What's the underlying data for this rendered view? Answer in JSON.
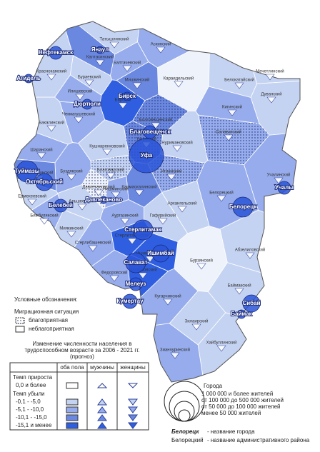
{
  "map": {
    "districts": [
      "Аскинский",
      "Татышлинский",
      "Балтачевский",
      "Караидельский",
      "Мечетлинский",
      "Дуванский",
      "Белокатайский",
      "Кигинский",
      "Салаватский",
      "Нуримановский",
      "Иглинский",
      "Архангельский",
      "Гафурийский",
      "Белорецкий",
      "Учалинский",
      "Абзелиловский",
      "Бурзянский",
      "Баймакский",
      "Хайбуллинский",
      "Зилаирский",
      "Кугарчинский",
      "Зианчуринский",
      "Федоровский",
      "Мелеузовский",
      "Стерлибашевский",
      "Миякинский",
      "Бижбулякский",
      "Ермекеевский",
      "Шаранский",
      "Бакалинский",
      "Чекмагушевский",
      "Илишевский",
      "Краснокамский",
      "Калтасинский",
      "Бураевский",
      "Мишкинский",
      "Бирский",
      "Кушнаренковский",
      "Кармаскалинский",
      "Альшеевский",
      "Аургазинский",
      "Буздякский",
      "Благоварский",
      "Чишминский",
      "Уфимский",
      "Стерлитамакский",
      "Ишимбайский",
      "Туймазинский",
      "Давлекановский",
      "Благовещенский"
    ],
    "cities": [
      "Нефтекамск",
      "Янаул",
      "Агидель",
      "Дюртюли",
      "Бирск",
      "Благовещенск",
      "Уфа",
      "Туймазы",
      "Октябрьский",
      "Белебей",
      "Давлеканово",
      "Стерлитамак",
      "Ишимбай",
      "Салават",
      "Мелеуз",
      "Кумертау",
      "Белорецк",
      "Учалы",
      "Сибай",
      "Баймак"
    ]
  },
  "legend": {
    "title": "Условные обозначения:",
    "migration": {
      "title": "Миграционная ситуация",
      "favorable": "благоприятная",
      "unfavorable": "неблагоприятная"
    },
    "change": {
      "title": [
        "Изменение численности населения в",
        "трудоспособном возрасте за 2006 - 2021 гг.",
        "(прогноз)"
      ],
      "columns": [
        "оба пола",
        "мужчины",
        "женщины"
      ],
      "growth": "Темп прироста",
      "growth_rows": [
        "0,0 и более"
      ],
      "decline": "Темп убыли",
      "decline_rows": [
        "-0,1 - -5,0",
        "-5,1 - -10,0",
        "-10,1 - -15,0",
        "-15,1 и менее"
      ]
    },
    "cities": {
      "title": "Города",
      "sizes": [
        "1 000 000 и более жителей",
        "от 100 000 до 500 000 жителей",
        "от 50 000 до 100 000 жителей",
        "менее 50 000 жителей"
      ]
    },
    "names": {
      "city_example": "Белорецк",
      "city_note": "- название города",
      "district_example": "Белорецкий",
      "district_note": "- название административного района"
    }
  }
}
